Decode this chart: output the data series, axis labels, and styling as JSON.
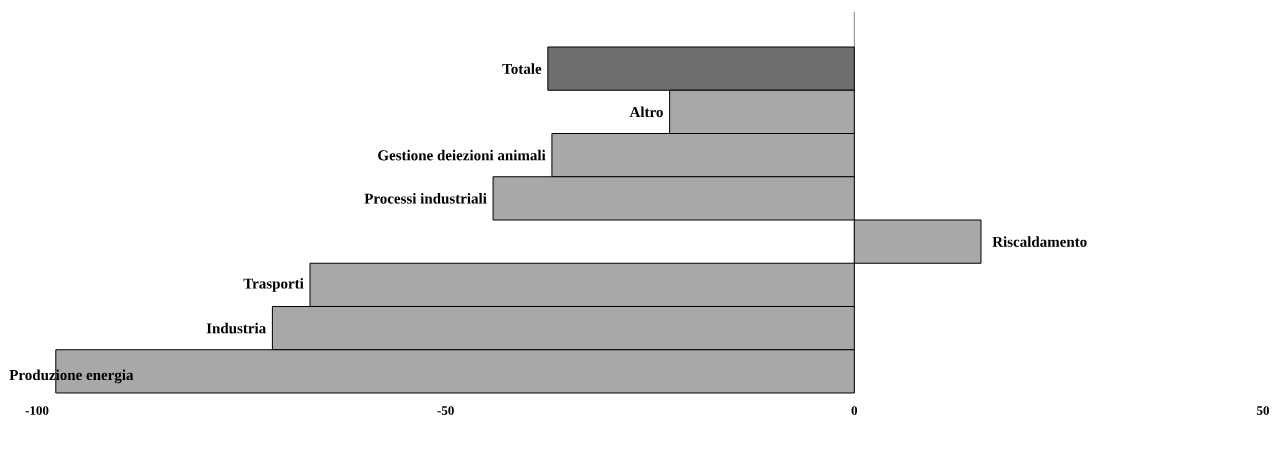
{
  "chart_data": {
    "type": "bar",
    "orientation": "horizontal",
    "categories": [
      "Totale",
      "Altro",
      "Gestione deiezioni animali",
      "Processi industriali",
      "Riscaldamento",
      "Trasporti",
      "Industria",
      "Produzione energia"
    ],
    "values": [
      -37.5,
      -22.6,
      -37,
      -44.2,
      15.5,
      -66.6,
      -71.2,
      -97.7
    ],
    "colors": [
      "#6e6e6e",
      "#a8a8a8",
      "#a8a8a8",
      "#a8a8a8",
      "#a8a8a8",
      "#a8a8a8",
      "#a8a8a8",
      "#a8a8a8"
    ],
    "xlim": [
      -100,
      50
    ],
    "xticks": [
      -100,
      -50,
      0,
      50
    ],
    "ref_lines": [
      {
        "axis": "x",
        "value": 0
      }
    ]
  }
}
